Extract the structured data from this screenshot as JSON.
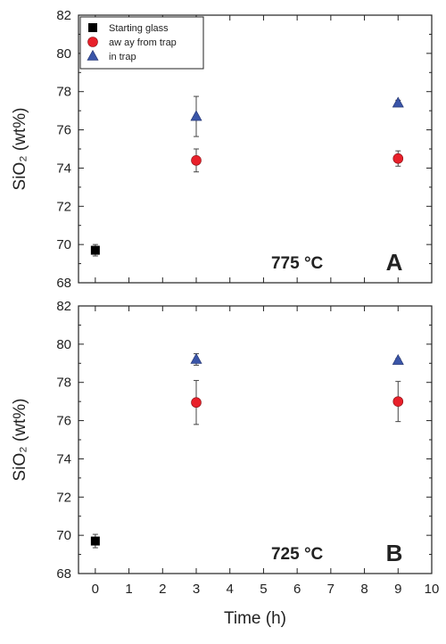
{
  "chart_data": [
    {
      "type": "scatter",
      "panel_label": "A",
      "annotation": "775 °C",
      "ylabel": "SiO₂ (wt%)",
      "xlabel": "",
      "xlim": [
        -0.5,
        10
      ],
      "ylim": [
        68,
        82
      ],
      "x_ticks": [],
      "y_ticks": [
        68,
        70,
        72,
        74,
        76,
        78,
        80,
        82
      ],
      "legend_position": "top-left",
      "grid": false,
      "series": [
        {
          "name": "Starting glass",
          "marker": "square",
          "color": "#000000",
          "points": [
            {
              "x": 0,
              "y": 69.7,
              "err": 0.3
            }
          ]
        },
        {
          "name": "aw ay from trap",
          "marker": "circle",
          "color": "#e8202a",
          "points": [
            {
              "x": 3,
              "y": 74.4,
              "err": 0.6
            },
            {
              "x": 9,
              "y": 74.5,
              "err": 0.4
            }
          ]
        },
        {
          "name": "in trap",
          "marker": "triangle",
          "color": "#3a55a8",
          "points": [
            {
              "x": 3,
              "y": 76.7,
              "err": 1.05
            },
            {
              "x": 9,
              "y": 77.4,
              "err": 0.15
            }
          ]
        }
      ]
    },
    {
      "type": "scatter",
      "panel_label": "B",
      "annotation": "725 °C",
      "ylabel": "SiO₂ (wt%)",
      "xlabel": "Time (h)",
      "xlim": [
        -0.5,
        10
      ],
      "ylim": [
        68,
        82
      ],
      "x_ticks": [
        0,
        1,
        2,
        3,
        4,
        5,
        6,
        7,
        8,
        9,
        10
      ],
      "y_ticks": [
        68,
        70,
        72,
        74,
        76,
        78,
        80,
        82
      ],
      "legend_position": "none",
      "grid": false,
      "series": [
        {
          "name": "",
          "marker": "square",
          "color": "#000000",
          "points": [
            {
              "x": 0,
              "y": 69.7,
              "err": 0.35
            }
          ]
        },
        {
          "name": "",
          "marker": "circle",
          "color": "#e8202a",
          "points": [
            {
              "x": 3,
              "y": 76.95,
              "err": 1.15
            },
            {
              "x": 9,
              "y": 77.0,
              "err": 1.05
            }
          ]
        },
        {
          "name": "",
          "marker": "triangle",
          "color": "#3a55a8",
          "points": [
            {
              "x": 3,
              "y": 79.2,
              "err": 0.3
            },
            {
              "x": 9,
              "y": 79.15,
              "err": 0.1
            }
          ]
        }
      ]
    }
  ]
}
